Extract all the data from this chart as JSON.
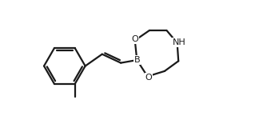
{
  "bg_color": "#ffffff",
  "line_color": "#1a1a1a",
  "line_width": 1.6,
  "font_size_label": 8.0,
  "fig_width": 3.19,
  "fig_height": 1.65,
  "dpi": 100,
  "xlim": [
    0.0,
    10.0
  ],
  "ylim": [
    0.0,
    5.2
  ]
}
